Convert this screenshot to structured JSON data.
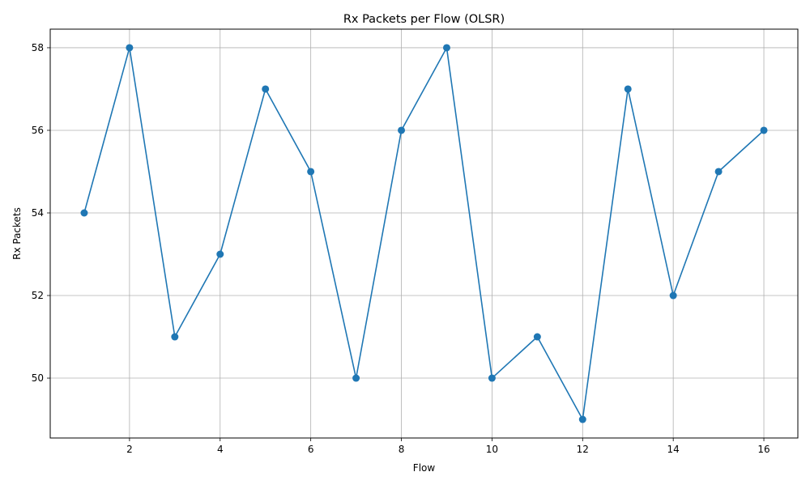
{
  "chart_data": {
    "type": "line",
    "title": "Rx Packets per Flow (OLSR)",
    "xlabel": "Flow",
    "ylabel": "Rx Packets",
    "xlim": [
      0.25,
      16.75
    ],
    "ylim": [
      48.55,
      58.45
    ],
    "xticks": [
      2,
      4,
      6,
      8,
      10,
      12,
      14,
      16
    ],
    "yticks": [
      50,
      52,
      54,
      56,
      58
    ],
    "grid": true,
    "marker": "circle",
    "x": [
      1,
      2,
      3,
      4,
      5,
      6,
      7,
      8,
      9,
      10,
      11,
      12,
      13,
      14,
      15,
      16
    ],
    "series": [
      {
        "values": [
          54,
          58,
          51,
          53,
          57,
          55,
          50,
          56,
          58,
          50,
          51,
          49,
          57,
          52,
          55,
          56
        ],
        "color": "#1f77b4"
      }
    ]
  }
}
